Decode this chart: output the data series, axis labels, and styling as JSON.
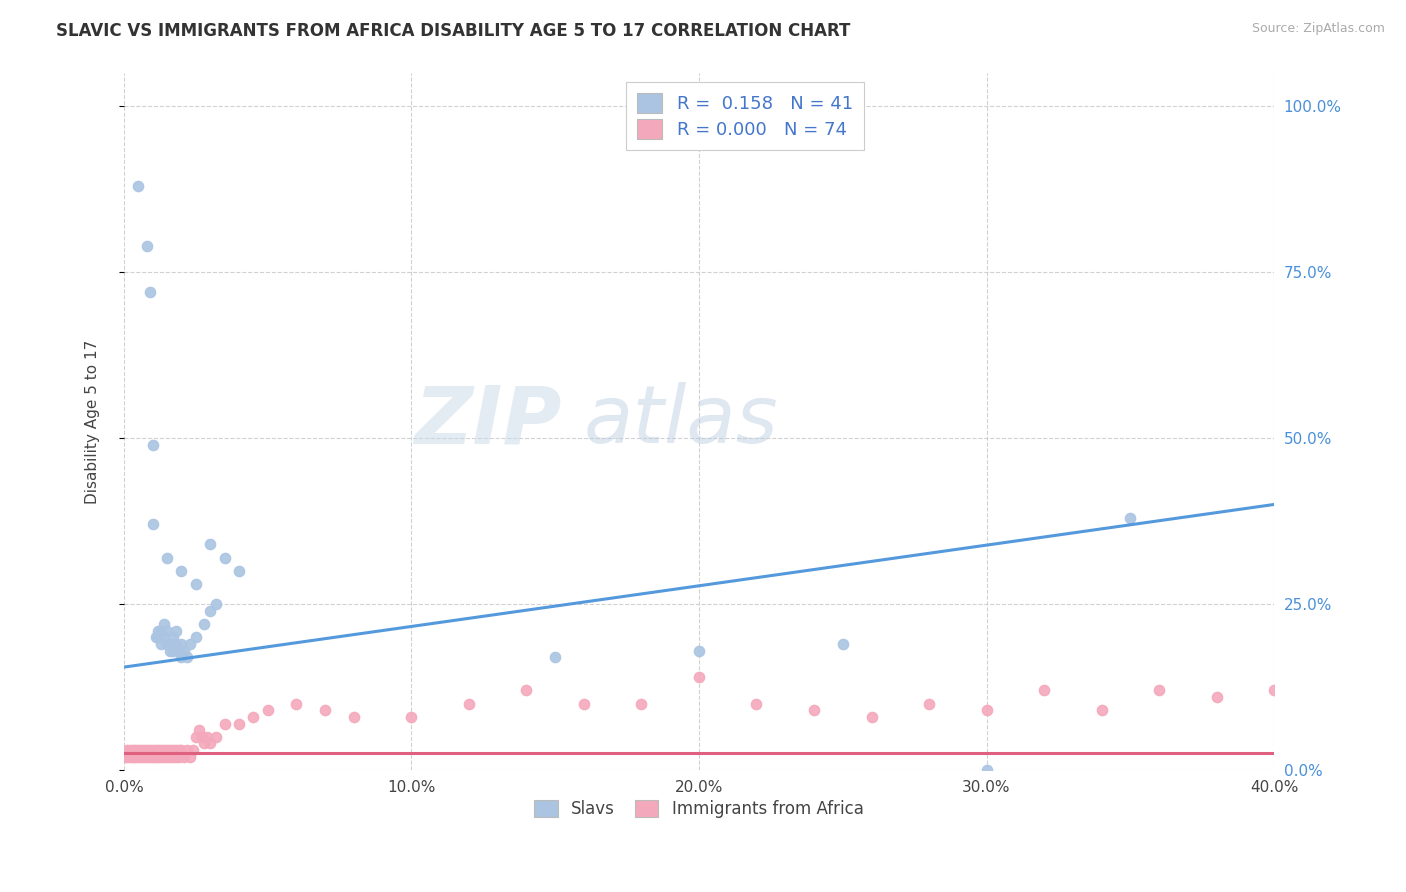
{
  "title": "SLAVIC VS IMMIGRANTS FROM AFRICA DISABILITY AGE 5 TO 17 CORRELATION CHART",
  "source": "Source: ZipAtlas.com",
  "ylabel": "Disability Age 5 to 17",
  "xmin": 0.0,
  "xmax": 0.4,
  "ymin": 0.0,
  "ymax": 1.05,
  "xticks": [
    0.0,
    0.1,
    0.2,
    0.3,
    0.4
  ],
  "xtick_labels": [
    "0.0%",
    "10.0%",
    "20.0%",
    "30.0%",
    "40.0%"
  ],
  "ytick_positions": [
    0.0,
    0.25,
    0.5,
    0.75,
    1.0
  ],
  "ytick_labels": [
    "0.0%",
    "25.0%",
    "50.0%",
    "75.0%",
    "100.0%"
  ],
  "legend_label1": "Slavs",
  "legend_label2": "Immigrants from Africa",
  "slavic_color": "#aac4e2",
  "africa_color": "#f4a8bc",
  "slavic_line_color": "#5599dd",
  "africa_line_color": "#e06080",
  "background_color": "#ffffff",
  "slavic_x": [
    0.005,
    0.008,
    0.009,
    0.01,
    0.011,
    0.012,
    0.012,
    0.013,
    0.013,
    0.014,
    0.014,
    0.015,
    0.015,
    0.016,
    0.016,
    0.017,
    0.017,
    0.018,
    0.018,
    0.019,
    0.02,
    0.02,
    0.021,
    0.022,
    0.023,
    0.025,
    0.028,
    0.03,
    0.032,
    0.01,
    0.015,
    0.02,
    0.025,
    0.03,
    0.035,
    0.04,
    0.15,
    0.2,
    0.25,
    0.35,
    0.3
  ],
  "slavic_y": [
    0.88,
    0.79,
    0.72,
    0.49,
    0.2,
    0.21,
    0.2,
    0.19,
    0.21,
    0.2,
    0.22,
    0.19,
    0.21,
    0.19,
    0.18,
    0.2,
    0.18,
    0.19,
    0.21,
    0.18,
    0.17,
    0.19,
    0.18,
    0.17,
    0.19,
    0.2,
    0.22,
    0.24,
    0.25,
    0.37,
    0.32,
    0.3,
    0.28,
    0.34,
    0.32,
    0.3,
    0.17,
    0.18,
    0.19,
    0.38,
    0.0
  ],
  "africa_x": [
    0.0,
    0.001,
    0.001,
    0.002,
    0.002,
    0.003,
    0.003,
    0.004,
    0.004,
    0.005,
    0.005,
    0.006,
    0.006,
    0.007,
    0.007,
    0.008,
    0.008,
    0.009,
    0.009,
    0.01,
    0.01,
    0.011,
    0.011,
    0.012,
    0.012,
    0.013,
    0.013,
    0.014,
    0.014,
    0.015,
    0.015,
    0.016,
    0.016,
    0.017,
    0.017,
    0.018,
    0.018,
    0.019,
    0.019,
    0.02,
    0.021,
    0.022,
    0.023,
    0.024,
    0.025,
    0.026,
    0.027,
    0.028,
    0.029,
    0.03,
    0.032,
    0.035,
    0.04,
    0.045,
    0.05,
    0.06,
    0.07,
    0.08,
    0.1,
    0.12,
    0.14,
    0.16,
    0.18,
    0.2,
    0.22,
    0.24,
    0.26,
    0.28,
    0.3,
    0.32,
    0.34,
    0.36,
    0.38,
    0.4
  ],
  "africa_y": [
    0.02,
    0.02,
    0.03,
    0.03,
    0.02,
    0.02,
    0.03,
    0.03,
    0.02,
    0.03,
    0.02,
    0.03,
    0.02,
    0.03,
    0.02,
    0.03,
    0.02,
    0.03,
    0.02,
    0.03,
    0.02,
    0.03,
    0.02,
    0.03,
    0.02,
    0.03,
    0.02,
    0.03,
    0.02,
    0.03,
    0.02,
    0.03,
    0.02,
    0.03,
    0.02,
    0.03,
    0.02,
    0.03,
    0.02,
    0.03,
    0.02,
    0.03,
    0.02,
    0.03,
    0.05,
    0.06,
    0.05,
    0.04,
    0.05,
    0.04,
    0.05,
    0.07,
    0.07,
    0.08,
    0.09,
    0.1,
    0.09,
    0.08,
    0.08,
    0.1,
    0.12,
    0.1,
    0.1,
    0.14,
    0.1,
    0.09,
    0.08,
    0.1,
    0.09,
    0.12,
    0.09,
    0.12,
    0.11,
    0.12
  ],
  "slavic_trendline_x": [
    0.0,
    0.4
  ],
  "slavic_trendline_y": [
    0.155,
    0.4
  ],
  "africa_trendline_x": [
    0.0,
    0.4
  ],
  "africa_trendline_y": [
    0.025,
    0.025
  ]
}
